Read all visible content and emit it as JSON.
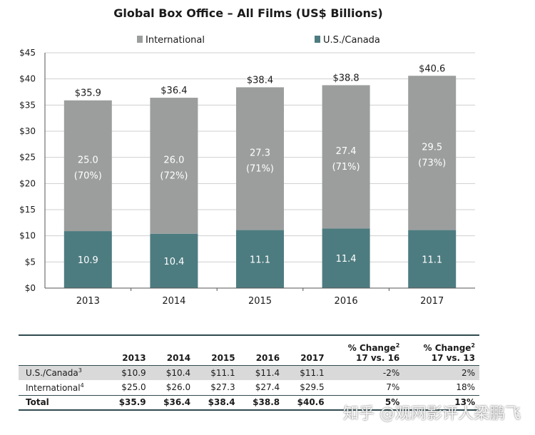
{
  "chart_data": {
    "type": "bar",
    "stacked": true,
    "title": "Global Box Office – All Films (US$ Billions)",
    "categories": [
      "2013",
      "2014",
      "2015",
      "2016",
      "2017"
    ],
    "series": [
      {
        "name": "U.S./Canada",
        "color": "#4d7c80",
        "values": [
          10.9,
          10.4,
          11.1,
          11.4,
          11.1
        ]
      },
      {
        "name": "International",
        "color": "#9c9e9e",
        "values": [
          25.0,
          26.0,
          27.3,
          27.4,
          29.5
        ],
        "shares": [
          "(70%)",
          "(72%)",
          "(71%)",
          "(71%)",
          "(73%)"
        ]
      }
    ],
    "totals": [
      "$35.9",
      "$36.4",
      "$38.4",
      "$38.8",
      "$40.6"
    ],
    "us_labels": [
      "10.9",
      "10.4",
      "11.1",
      "11.4",
      "11.1"
    ],
    "intl_labels": [
      "25.0",
      "26.0",
      "27.3",
      "27.4",
      "29.5"
    ],
    "y_ticks": [
      "$0",
      "$5",
      "$10",
      "$15",
      "$20",
      "$25",
      "$30",
      "$35",
      "$40",
      "$45"
    ],
    "ylim": [
      0,
      45
    ],
    "grid": true,
    "legend": "top"
  },
  "table": {
    "headers": [
      "",
      "2013",
      "2014",
      "2015",
      "2016",
      "2017"
    ],
    "pct_header_1": {
      "line1": "% Change",
      "sup": "2",
      "line2": "17 vs. 16"
    },
    "pct_header_2": {
      "line1": "% Change",
      "sup": "2",
      "line2": "17 vs. 13"
    },
    "rows": [
      {
        "label": "U.S./Canada",
        "sup": "3",
        "cells": [
          "$10.9",
          "$10.4",
          "$11.1",
          "$11.4",
          "$11.1",
          "-2%",
          "2%"
        ]
      },
      {
        "label": "International",
        "sup": "4",
        "cells": [
          "$25.0",
          "$26.0",
          "$27.3",
          "$27.4",
          "$29.5",
          "7%",
          "18%"
        ]
      },
      {
        "label": "Total",
        "sup": "",
        "cells": [
          "$35.9",
          "$36.4",
          "$38.4",
          "$38.8",
          "$40.6",
          "5%",
          "13%"
        ]
      }
    ]
  },
  "watermark": "知乎 @观网影评人梁鹏飞"
}
